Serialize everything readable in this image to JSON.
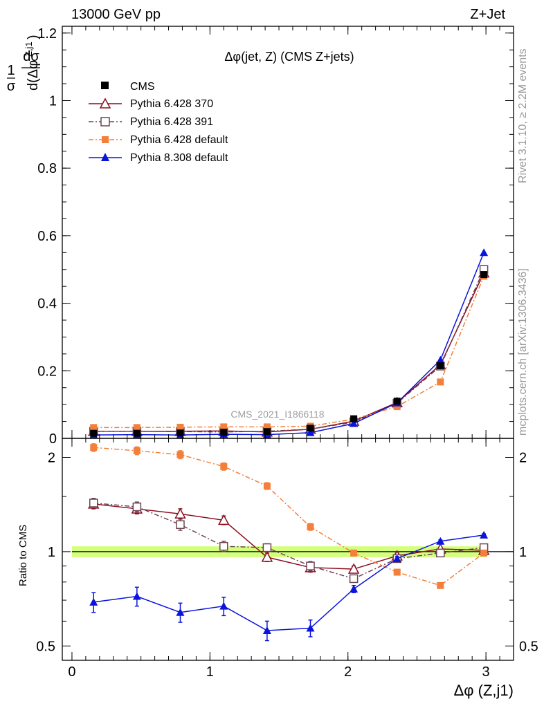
{
  "header": {
    "left": "13000 GeV pp",
    "right": "Z+Jet"
  },
  "plot_title": "Δφ(jet, Z) (CMS Z+jets)",
  "watermark": "CMS_2021_I1866118",
  "side_labels": {
    "rivet": "Rivet 3.1.10, ≥ 2.2M events",
    "mcplots": "mcplots.cern.ch [arXiv:1306.3436]"
  },
  "y_axis_upper": "1/σ dσ/d(Δφ^{Z,j1})",
  "y_axis_ratio": "Ratio to CMS",
  "x_axis": "Δφ (Z,j1)",
  "upper_ticks": [
    "0",
    "0.2",
    "0.4",
    "0.6",
    "0.8",
    "1",
    "1.2"
  ],
  "ratio_ticks": [
    "0.5",
    "1",
    "2"
  ],
  "x_ticks": [
    "0",
    "1",
    "2",
    "3"
  ],
  "colors": {
    "cms": "#000000",
    "p370": "#8b0b1e",
    "p391": "#6b4552",
    "p6def": "#f47f3a",
    "p8def": "#0a14dc",
    "band": "#ccff66"
  },
  "chart_data": [
    {
      "type": "line",
      "panel": "main",
      "xlabel": "Δφ (Z,j1)",
      "ylabel": "1/σ dσ/d(Δφ^{Z,j1})",
      "xlim": [
        -0.07,
        3.2
      ],
      "ylim": [
        0,
        1.22
      ],
      "x": [
        0.157,
        0.471,
        0.785,
        1.1,
        1.414,
        1.728,
        2.042,
        2.356,
        2.67,
        2.985
      ],
      "series": [
        {
          "name": "CMS",
          "marker": "square-filled",
          "values": [
            0.015,
            0.015,
            0.016,
            0.018,
            0.02,
            0.03,
            0.058,
            0.11,
            0.215,
            0.485
          ]
        },
        {
          "name": "Pythia 6.428 370",
          "marker": "triangle-open",
          "values": [
            0.021,
            0.021,
            0.021,
            0.022,
            0.019,
            0.027,
            0.051,
            0.106,
            0.218,
            0.49
          ]
        },
        {
          "name": "Pythia 6.428 391",
          "marker": "square-open",
          "values": [
            0.021,
            0.021,
            0.02,
            0.019,
            0.021,
            0.027,
            0.048,
            0.104,
            0.214,
            0.5
          ]
        },
        {
          "name": "Pythia 6.428 default",
          "marker": "square-filled",
          "values": [
            0.032,
            0.032,
            0.033,
            0.034,
            0.034,
            0.036,
            0.057,
            0.094,
            0.167,
            0.48
          ]
        },
        {
          "name": "Pythia 8.308 default",
          "marker": "triangle-filled",
          "values": [
            0.01,
            0.011,
            0.01,
            0.012,
            0.011,
            0.017,
            0.044,
            0.105,
            0.232,
            0.55
          ]
        }
      ]
    },
    {
      "type": "line",
      "panel": "ratio",
      "ylabel": "Ratio to CMS",
      "ylim": [
        0.45,
        2.3
      ],
      "y_scale": "log",
      "x": [
        0.157,
        0.471,
        0.785,
        1.1,
        1.414,
        1.728,
        2.042,
        2.356,
        2.67,
        2.985
      ],
      "reference_band": {
        "values": [
          1,
          1,
          1,
          1,
          1,
          1,
          1,
          1,
          1,
          1
        ],
        "half_width": 0.04
      },
      "series": [
        {
          "name": "Pythia 6.428 370",
          "marker": "triangle-open",
          "values": [
            1.42,
            1.37,
            1.32,
            1.26,
            0.96,
            0.89,
            0.88,
            0.97,
            1.02,
            1.01
          ],
          "errors": [
            0.05,
            0.05,
            0.05,
            0.04,
            0.03,
            0.03,
            0.02,
            0.02,
            0.01,
            0.01
          ]
        },
        {
          "name": "Pythia 6.428 391",
          "marker": "square-open",
          "values": [
            1.43,
            1.39,
            1.22,
            1.04,
            1.03,
            0.9,
            0.82,
            0.95,
            0.99,
            1.03
          ],
          "errors": [
            0.05,
            0.05,
            0.05,
            0.04,
            0.03,
            0.03,
            0.02,
            0.02,
            0.01,
            0.01
          ]
        },
        {
          "name": "Pythia 6.428 default",
          "marker": "square-filled",
          "values": [
            2.15,
            2.1,
            2.04,
            1.87,
            1.62,
            1.2,
            0.99,
            0.86,
            0.78,
            0.99
          ],
          "errors": [
            0.06,
            0.06,
            0.06,
            0.05,
            0.04,
            0.03,
            0.02,
            0.01,
            0.01,
            0.01
          ]
        },
        {
          "name": "Pythia 8.308 default",
          "marker": "triangle-filled",
          "values": [
            0.69,
            0.72,
            0.64,
            0.67,
            0.56,
            0.57,
            0.76,
            0.95,
            1.08,
            1.13
          ],
          "errors": [
            0.05,
            0.05,
            0.045,
            0.045,
            0.04,
            0.035,
            0.02,
            0.015,
            0.01,
            0.01
          ]
        }
      ]
    }
  ]
}
